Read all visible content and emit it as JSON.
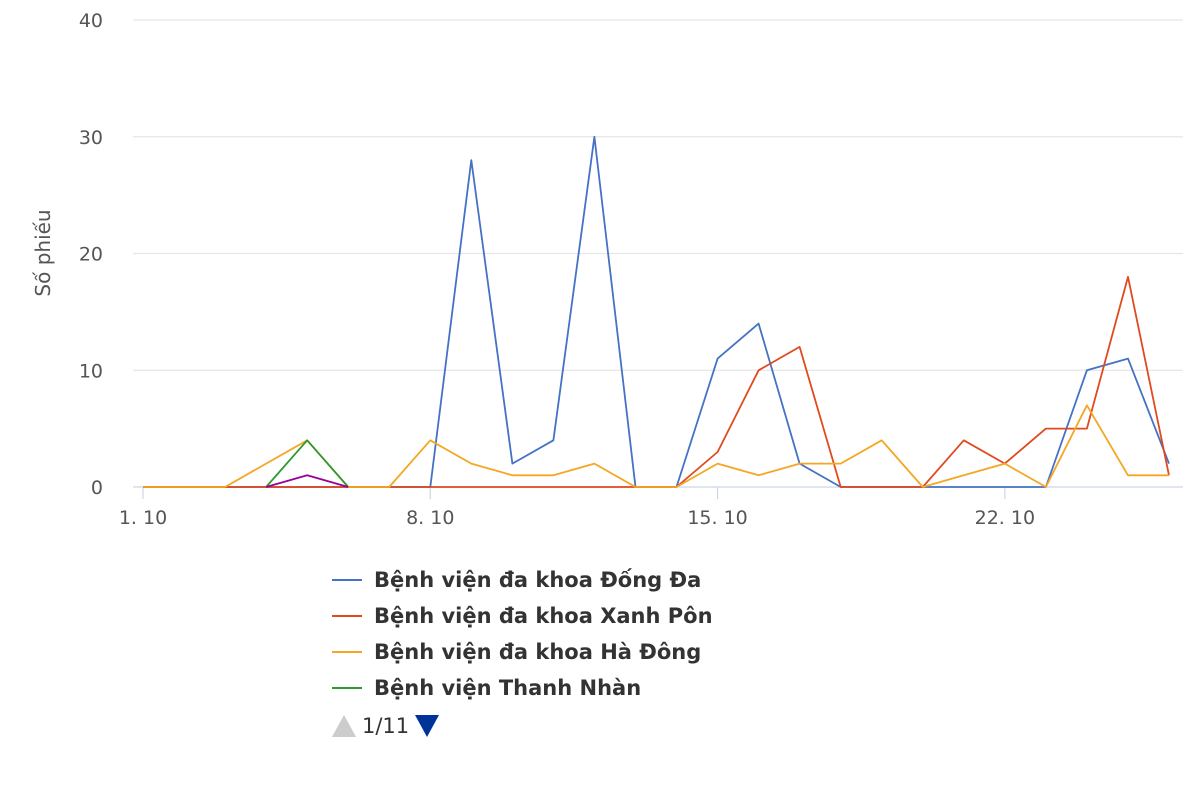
{
  "chart_data": {
    "type": "line",
    "ylabel": "Số phiếu",
    "ylim": [
      0,
      40
    ],
    "y_ticks": [
      "0",
      "10",
      "20",
      "30",
      "40"
    ],
    "x_tick_labels": [
      {
        "day": 1,
        "label": "1. 10"
      },
      {
        "day": 8,
        "label": "8. 10"
      },
      {
        "day": 15,
        "label": "15. 10"
      },
      {
        "day": 22,
        "label": "22. 10"
      }
    ],
    "x": [
      1,
      2,
      3,
      4,
      5,
      6,
      7,
      8,
      9,
      10,
      11,
      12,
      13,
      14,
      15,
      16,
      17,
      18,
      19,
      20,
      21,
      22,
      23,
      24,
      25,
      26,
      27
    ],
    "series": [
      {
        "name": "Bệnh viện đa khoa Đống Đa",
        "color": "#4472c4",
        "legend": true,
        "values": [
          0,
          0,
          0,
          0,
          0,
          0,
          0,
          0,
          28,
          2,
          4,
          30,
          0,
          0,
          11,
          14,
          2,
          0,
          0,
          0,
          0,
          0,
          0,
          10,
          11,
          2,
          null
        ]
      },
      {
        "name": "Bệnh viện đa khoa Xanh Pôn",
        "color": "#e04a1f",
        "legend": true,
        "values": [
          0,
          0,
          0,
          0,
          0,
          0,
          0,
          0,
          0,
          0,
          0,
          0,
          0,
          0,
          3,
          10,
          12,
          0,
          0,
          0,
          4,
          2,
          5,
          5,
          18,
          1,
          null
        ]
      },
      {
        "name": "Bệnh viện đa khoa Hà Đông",
        "color": "#f5a623",
        "legend": true,
        "values": [
          0,
          0,
          0,
          2,
          4,
          0,
          0,
          4,
          2,
          1,
          1,
          2,
          0,
          0,
          2,
          1,
          2,
          2,
          4,
          0,
          1,
          2,
          0,
          7,
          1,
          1,
          null
        ]
      },
      {
        "name": "Bệnh viện Thanh Nhàn",
        "color": "#2e9a2e",
        "legend": true,
        "values": [
          null,
          null,
          null,
          0,
          4,
          0,
          null,
          null,
          null,
          null,
          null,
          null,
          null,
          null,
          null,
          null,
          null,
          null,
          null,
          null,
          null,
          null,
          null,
          null,
          null,
          null,
          null
        ]
      },
      {
        "name": "",
        "color": "#990099",
        "legend": false,
        "values": [
          null,
          null,
          null,
          0,
          1,
          0,
          null,
          null,
          null,
          null,
          null,
          null,
          null,
          null,
          null,
          null,
          null,
          null,
          null,
          null,
          null,
          null,
          null,
          null,
          null,
          null,
          null
        ]
      }
    ]
  },
  "legend": {
    "items": [
      {
        "label": "Bệnh viện đa khoa Đống Đa",
        "color": "#4472c4"
      },
      {
        "label": "Bệnh viện đa khoa Xanh Pôn",
        "color": "#e04a1f"
      },
      {
        "label": "Bệnh viện đa khoa Hà Đông",
        "color": "#f5a623"
      },
      {
        "label": "Bệnh viện Thanh Nhàn",
        "color": "#2e9a2e"
      }
    ],
    "pager_text": "1/11"
  }
}
